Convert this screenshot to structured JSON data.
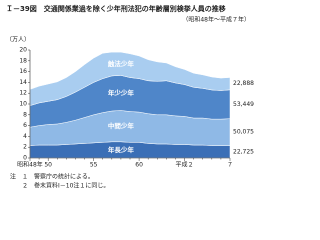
{
  "chart_data": {
    "type": "stacked-area",
    "title": "Ｉ－39図　交通関係業過を除く少年刑法犯の年齢層別検挙人員の推移",
    "subtitle": "（昭和48年～平成７年）",
    "y_label": "（万人）",
    "categories": [
      "昭和48年",
      null,
      "50",
      null,
      null,
      null,
      null,
      "55",
      null,
      null,
      null,
      null,
      "60",
      null,
      null,
      null,
      null,
      "平成２",
      null,
      null,
      null,
      null,
      "７"
    ],
    "ylim": [
      0,
      20
    ],
    "yticks": [
      0,
      2,
      4,
      6,
      8,
      10,
      12,
      14,
      16,
      18,
      20
    ],
    "series": [
      {
        "name": "年長少年",
        "color": "#3b6fb6",
        "values": [
          2.3,
          2.4,
          2.4,
          2.4,
          2.5,
          2.6,
          2.7,
          2.8,
          2.9,
          3.0,
          3.0,
          2.9,
          2.9,
          2.7,
          2.6,
          2.6,
          2.5,
          2.5,
          2.4,
          2.4,
          2.3,
          2.3,
          2.2725
        ],
        "value_labels": [
          null,
          null,
          null,
          null,
          null,
          null,
          null,
          null,
          null,
          null,
          null,
          null,
          null,
          null,
          null,
          null,
          null,
          null,
          null,
          null,
          null,
          null,
          "22,725"
        ]
      },
      {
        "name": "中間少年",
        "color": "#8fb9e6",
        "values": [
          3.4,
          3.6,
          3.8,
          3.9,
          4.1,
          4.4,
          4.8,
          5.2,
          5.5,
          5.7,
          5.8,
          5.7,
          5.6,
          5.5,
          5.4,
          5.4,
          5.3,
          5.2,
          5.0,
          5.0,
          4.9,
          4.9,
          5.0075
        ],
        "value_labels": [
          null,
          null,
          null,
          null,
          null,
          null,
          null,
          null,
          null,
          null,
          null,
          null,
          null,
          null,
          null,
          null,
          null,
          null,
          null,
          null,
          null,
          null,
          "50,075"
        ]
      },
      {
        "name": "年少少年",
        "color": "#4f86c9",
        "values": [
          4.0,
          4.2,
          4.3,
          4.5,
          4.8,
          5.2,
          5.6,
          6.0,
          6.3,
          6.5,
          6.5,
          6.3,
          6.2,
          6.1,
          6.2,
          6.3,
          6.1,
          5.9,
          5.7,
          5.5,
          5.4,
          5.3,
          5.3449
        ],
        "value_labels": [
          null,
          null,
          null,
          null,
          null,
          null,
          null,
          null,
          null,
          null,
          null,
          null,
          null,
          null,
          null,
          null,
          null,
          null,
          null,
          null,
          null,
          null,
          "53,449"
        ]
      },
      {
        "name": "触法少年",
        "color": "#a9cdf0",
        "values": [
          3.0,
          3.1,
          3.2,
          3.3,
          3.5,
          3.8,
          4.2,
          4.5,
          4.7,
          4.4,
          4.3,
          4.4,
          4.2,
          3.9,
          3.6,
          3.3,
          3.0,
          2.8,
          2.6,
          2.5,
          2.4,
          2.3,
          2.2888
        ],
        "value_labels": [
          null,
          null,
          null,
          null,
          null,
          null,
          null,
          null,
          null,
          null,
          null,
          null,
          null,
          null,
          null,
          null,
          null,
          null,
          null,
          null,
          null,
          null,
          "22,888"
        ]
      }
    ],
    "notes": [
      "注　１　警察庁の統計による。",
      "２　巻末資料Ⅰ－10注１に同じ。"
    ]
  }
}
